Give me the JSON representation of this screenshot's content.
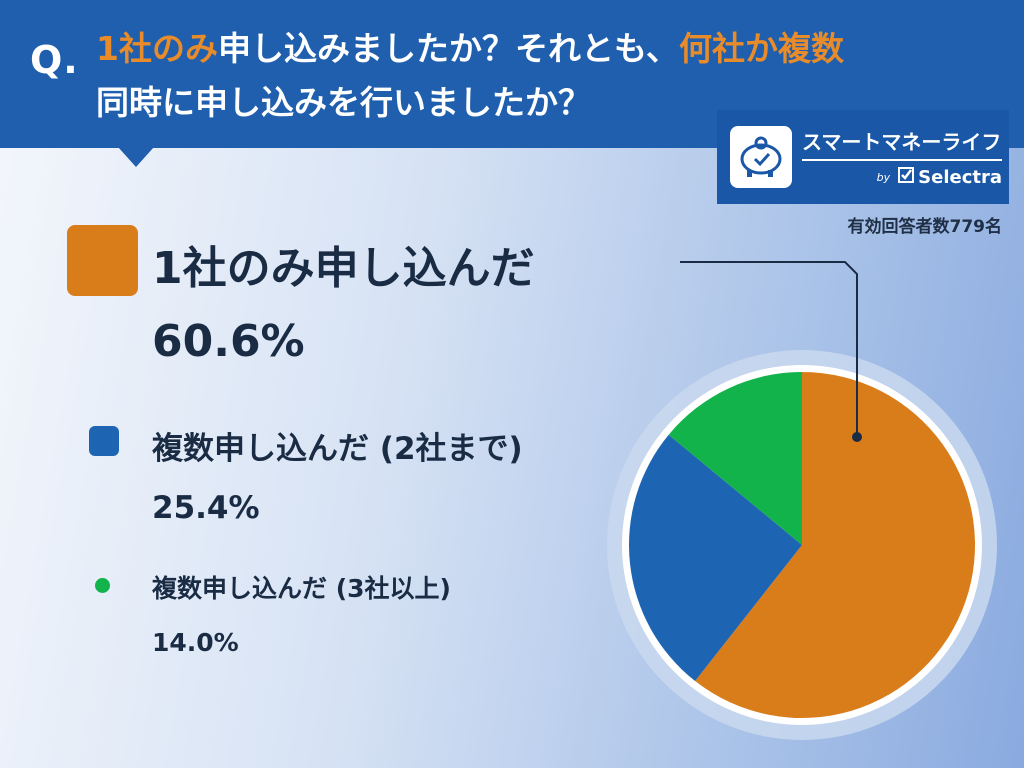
{
  "header": {
    "q_mark": "Q.",
    "line1_parts": [
      {
        "text": "1社のみ",
        "highlight": true
      },
      {
        "text": "申し込みましたか？それとも、",
        "highlight": false
      },
      {
        "text": "何社か複数",
        "highlight": true
      }
    ],
    "line2": "同時に申し込みを行いましたか？"
  },
  "logo": {
    "title": "スマートマネーライフ",
    "by": "by",
    "brand": "Selectra"
  },
  "respondents": "有効回答者数779名",
  "colors": {
    "header_bg": "#1f5fae",
    "highlight": "#e88b2a",
    "single": "#d97d1b",
    "two": "#1d65b3",
    "three_plus": "#13b34b"
  },
  "chart_data": {
    "type": "pie",
    "title": "",
    "slices": [
      {
        "label": "1社のみ申し込んだ",
        "value": 60.6,
        "value_label": "60.6%",
        "color": "#d97d1b"
      },
      {
        "label": "複数申し込んだ (2社まで)",
        "value": 25.4,
        "value_label": "25.4%",
        "color": "#1d65b3"
      },
      {
        "label": "複数申し込んだ (3社以上)",
        "value": 14.0,
        "value_label": "14.0%",
        "color": "#13b34b"
      }
    ],
    "start_angle_deg": 0,
    "direction": "clockwise",
    "legend_placement": "left"
  }
}
